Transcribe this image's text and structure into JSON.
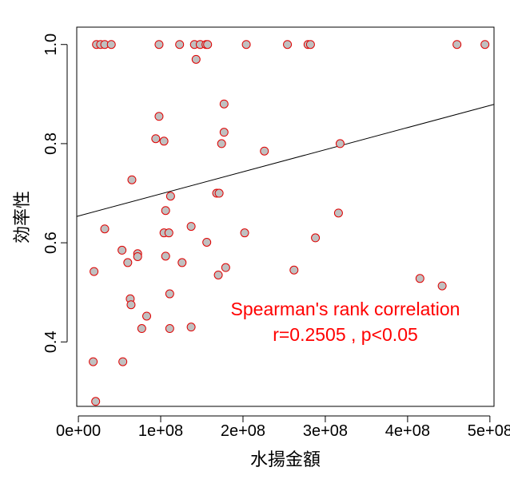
{
  "chart_data": {
    "type": "scatter",
    "xlabel": "水揚金額",
    "ylabel": "効率性",
    "xlim": [
      -2000000,
      505000000
    ],
    "ylim": [
      0.27,
      1.035
    ],
    "x_ticks": [
      0,
      100000000,
      200000000,
      300000000,
      400000000,
      500000000
    ],
    "x_tick_labels": [
      "0e+00",
      "1e+08",
      "2e+08",
      "3e+08",
      "4e+08",
      "5e+08"
    ],
    "y_ticks": [
      0.4,
      0.6,
      0.8,
      1.0
    ],
    "y_tick_labels": [
      "0.4",
      "0.6",
      "0.8",
      "1.0"
    ],
    "grid": false,
    "point_fill": "#c0c0c0",
    "point_stroke": "#e00000",
    "annotation_color": "#ff0000",
    "annotation_lines": [
      "Spearman's rank correlation",
      "r=0.2505 , p<0.05"
    ],
    "trend_line": {
      "intercept": 0.654,
      "slope": 4.46e-10
    },
    "points": [
      {
        "x": 22000000,
        "y": 1.0
      },
      {
        "x": 27000000,
        "y": 1.0
      },
      {
        "x": 32000000,
        "y": 1.0
      },
      {
        "x": 40000000,
        "y": 1.0
      },
      {
        "x": 98000000,
        "y": 1.0
      },
      {
        "x": 123000000,
        "y": 1.0
      },
      {
        "x": 141000000,
        "y": 1.0
      },
      {
        "x": 148000000,
        "y": 1.0
      },
      {
        "x": 155000000,
        "y": 1.0
      },
      {
        "x": 157000000,
        "y": 1.0
      },
      {
        "x": 204000000,
        "y": 1.0
      },
      {
        "x": 254000000,
        "y": 1.0
      },
      {
        "x": 279000000,
        "y": 1.0
      },
      {
        "x": 282000000,
        "y": 1.0
      },
      {
        "x": 460000000,
        "y": 1.0
      },
      {
        "x": 494000000,
        "y": 1.0
      },
      {
        "x": 143000000,
        "y": 0.97
      },
      {
        "x": 177000000,
        "y": 0.88
      },
      {
        "x": 98000000,
        "y": 0.855
      },
      {
        "x": 177000000,
        "y": 0.823
      },
      {
        "x": 94000000,
        "y": 0.81
      },
      {
        "x": 104000000,
        "y": 0.805
      },
      {
        "x": 174000000,
        "y": 0.8
      },
      {
        "x": 318000000,
        "y": 0.8
      },
      {
        "x": 226000000,
        "y": 0.785
      },
      {
        "x": 65000000,
        "y": 0.727
      },
      {
        "x": 112000000,
        "y": 0.694
      },
      {
        "x": 168000000,
        "y": 0.7
      },
      {
        "x": 171000000,
        "y": 0.7
      },
      {
        "x": 106000000,
        "y": 0.665
      },
      {
        "x": 316000000,
        "y": 0.66
      },
      {
        "x": 137000000,
        "y": 0.633
      },
      {
        "x": 32000000,
        "y": 0.628
      },
      {
        "x": 104000000,
        "y": 0.62
      },
      {
        "x": 110000000,
        "y": 0.62
      },
      {
        "x": 202000000,
        "y": 0.62
      },
      {
        "x": 288000000,
        "y": 0.61
      },
      {
        "x": 156000000,
        "y": 0.601
      },
      {
        "x": 53000000,
        "y": 0.585
      },
      {
        "x": 72000000,
        "y": 0.578
      },
      {
        "x": 72000000,
        "y": 0.572
      },
      {
        "x": 106000000,
        "y": 0.573
      },
      {
        "x": 60000000,
        "y": 0.56
      },
      {
        "x": 126000000,
        "y": 0.56
      },
      {
        "x": 179000000,
        "y": 0.55
      },
      {
        "x": 262000000,
        "y": 0.545
      },
      {
        "x": 19000000,
        "y": 0.542
      },
      {
        "x": 170000000,
        "y": 0.535
      },
      {
        "x": 415000000,
        "y": 0.528
      },
      {
        "x": 442000000,
        "y": 0.513
      },
      {
        "x": 111000000,
        "y": 0.497
      },
      {
        "x": 63000000,
        "y": 0.487
      },
      {
        "x": 64000000,
        "y": 0.475
      },
      {
        "x": 83000000,
        "y": 0.452
      },
      {
        "x": 77000000,
        "y": 0.427
      },
      {
        "x": 111000000,
        "y": 0.427
      },
      {
        "x": 137000000,
        "y": 0.43
      },
      {
        "x": 18000000,
        "y": 0.36
      },
      {
        "x": 54000000,
        "y": 0.36
      },
      {
        "x": 21000000,
        "y": 0.28
      }
    ]
  }
}
